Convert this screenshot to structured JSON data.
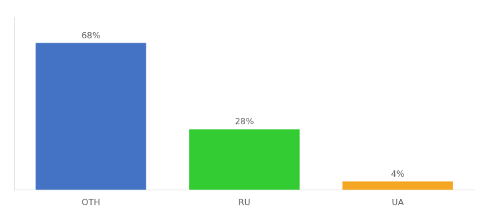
{
  "chart_data": {
    "type": "bar",
    "categories": [
      "OTH",
      "RU",
      "UA"
    ],
    "values": [
      68,
      28,
      4
    ],
    "value_labels": [
      "68%",
      "28%",
      "4%"
    ],
    "colors": [
      "#4472c4",
      "#33cc33",
      "#f5a623"
    ],
    "ylim": [
      0,
      80
    ],
    "grid": false,
    "data_labels": true,
    "tick_labels": "x"
  }
}
